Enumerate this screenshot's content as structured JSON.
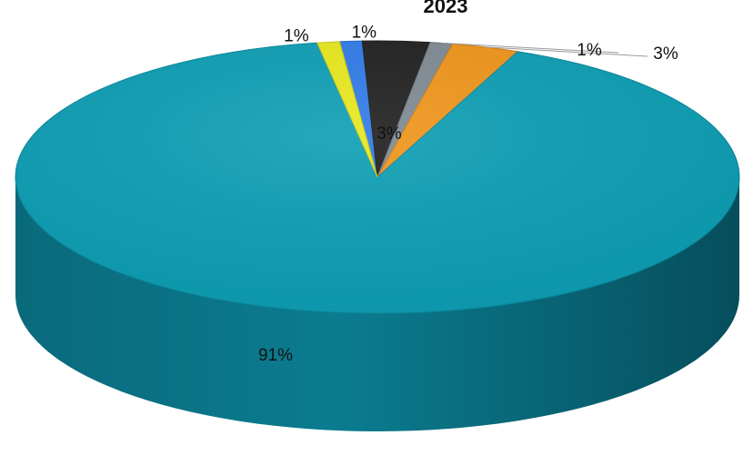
{
  "chart_data": {
    "type": "pie",
    "style": "3d",
    "title": "2023",
    "slices": [
      {
        "label": "1%",
        "value": 1,
        "color": "#2f7be8"
      },
      {
        "label": "3%",
        "value": 3,
        "color": "#1f1f1f"
      },
      {
        "label": "1%",
        "value": 1,
        "color": "#7f8a94"
      },
      {
        "label": "3%",
        "value": 3,
        "color": "#f0951a"
      },
      {
        "label": "91%",
        "value": 91,
        "color": "#0c9eb4"
      },
      {
        "label": "1%",
        "value": 1,
        "color": "#e8e81c"
      }
    ],
    "legend": "none"
  }
}
